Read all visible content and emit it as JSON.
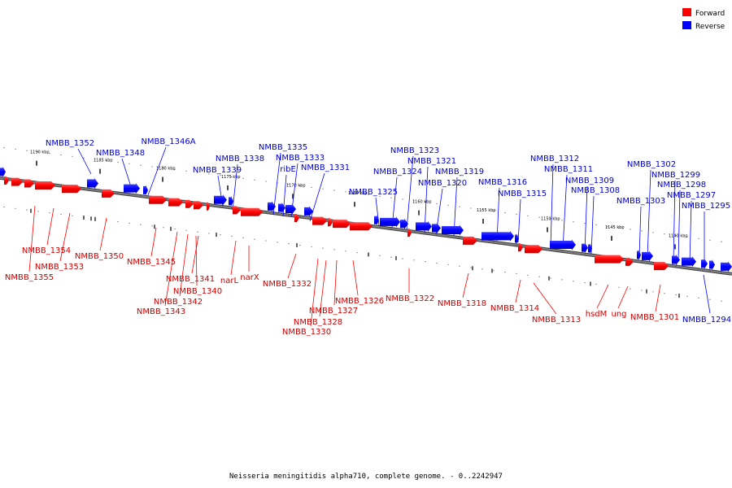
{
  "legend": {
    "forward": "Forward",
    "reverse": "Reverse"
  },
  "colors": {
    "forward": "#ff0000",
    "reverse": "#0000ff",
    "forward_label": "#cc0000",
    "reverse_label": "#0000cc",
    "backbone": "#808080"
  },
  "caption": "Neisseria meningitidis alpha710, complete genome. - 0..2242947",
  "ticks": [
    "1190 kbp",
    "1185 kbp",
    "1180 kbp",
    "1175 kbp",
    "1170 kbp",
    "1165 kbp",
    "1160 kbp",
    "1155 kbp",
    "1150 kbp",
    "1145 kbp",
    "1140 kbp"
  ],
  "reverse_genes": [
    "NMBB_1352",
    "NMBB_1348",
    "NMBB_1346A",
    "NMBB_1339",
    "NMBB_1338",
    "NMBB_1335",
    "ribE",
    "NMBB_1333",
    "NMBB_1331",
    "NMBB_1325",
    "NMBB_1324",
    "NMBB_1323",
    "NMBB_1321",
    "NMBB_1320",
    "NMBB_1319",
    "NMBB_1316",
    "NMBB_1315",
    "NMBB_1312",
    "NMBB_1311",
    "NMBB_1309",
    "NMBB_1308",
    "NMBB_1303",
    "NMBB_1302",
    "NMBB_1299",
    "NMBB_1298",
    "NMBB_1297",
    "NMBB_1295",
    "NMBB_1294"
  ],
  "forward_genes": [
    "NMBB_1355",
    "NMBB_1354",
    "NMBB_1353",
    "NMBB_1350",
    "NMBB_1345",
    "NMBB_1343",
    "NMBB_1342",
    "NMBB_1341",
    "NMBB_1340",
    "narL",
    "narX",
    "NMBB_1332",
    "NMBB_1330",
    "NMBB_1328",
    "NMBB_1327",
    "NMBB_1326",
    "NMBB_1322",
    "NMBB_1318",
    "NMBB_1314",
    "NMBB_1313",
    "hsdM",
    "ung",
    "NMBB_1301"
  ]
}
